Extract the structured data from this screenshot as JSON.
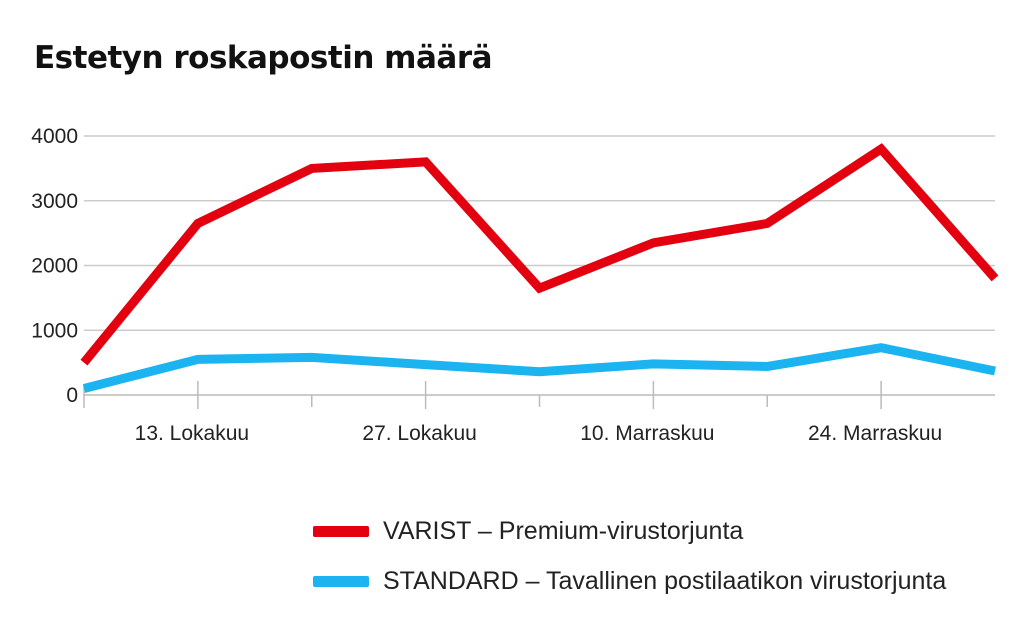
{
  "chart_data": {
    "type": "line",
    "title": "Estetyn roskapostin määrä",
    "xlabel": "",
    "ylabel": "",
    "ylim": [
      0,
      4000
    ],
    "yticks": [
      0,
      1000,
      2000,
      3000,
      4000
    ],
    "ytick_labels": [
      "0",
      "1000",
      "2000",
      "3000",
      "4000"
    ],
    "x": [
      0,
      1,
      2,
      3,
      4,
      5,
      6,
      7,
      8
    ],
    "xticks": [
      {
        "x": 1,
        "label": "13. Lokakuu"
      },
      {
        "x": 3,
        "label": "27. Lokakuu"
      },
      {
        "x": 5,
        "label": "10. Marraskuu"
      },
      {
        "x": 7,
        "label": "24. Marraskuu"
      }
    ],
    "minor_xticks": [
      2,
      4,
      6
    ],
    "grid": "horizontal",
    "legend_position": "bottom",
    "series": [
      {
        "name": "VARIST – Premium-virustorjunta",
        "color": "#e3000f",
        "values": [
          500,
          2650,
          3500,
          3600,
          1650,
          2350,
          2650,
          3800,
          1800
        ]
      },
      {
        "name": "STANDARD – Tavallinen postilaatikon virustorjunta",
        "color": "#1cb4f0",
        "values": [
          100,
          550,
          580,
          470,
          360,
          480,
          440,
          730,
          370
        ]
      }
    ]
  }
}
